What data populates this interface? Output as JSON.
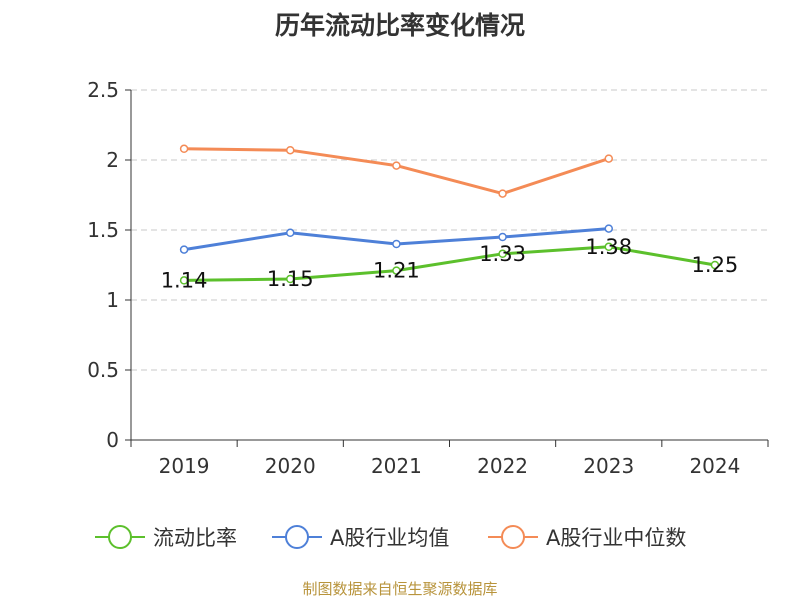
{
  "chart_data": {
    "type": "line",
    "title": "历年流动比率变化情况",
    "categories": [
      "2019",
      "2020",
      "2021",
      "2022",
      "2023",
      "2024"
    ],
    "ylim": [
      0,
      2.5
    ],
    "yticks": [
      "0",
      "0.5",
      "1",
      "1.5",
      "2",
      "2.5"
    ],
    "grid": true,
    "legend_position": "bottom",
    "series": [
      {
        "name": "流动比率",
        "color": "#5cc02c",
        "values": [
          1.14,
          1.15,
          1.21,
          1.33,
          1.38,
          1.25
        ],
        "labels": [
          "1.14",
          "1.15",
          "1.21",
          "1.33",
          "1.38",
          "1.25"
        ]
      },
      {
        "name": "A股行业均值",
        "color": "#4e80d8",
        "values": [
          1.36,
          1.48,
          1.4,
          1.45,
          1.51,
          null
        ]
      },
      {
        "name": "A股行业中位数",
        "color": "#f48b56",
        "values": [
          2.08,
          2.07,
          1.96,
          1.76,
          2.01,
          null
        ]
      }
    ],
    "source": "制图数据来自恒生聚源数据库"
  }
}
